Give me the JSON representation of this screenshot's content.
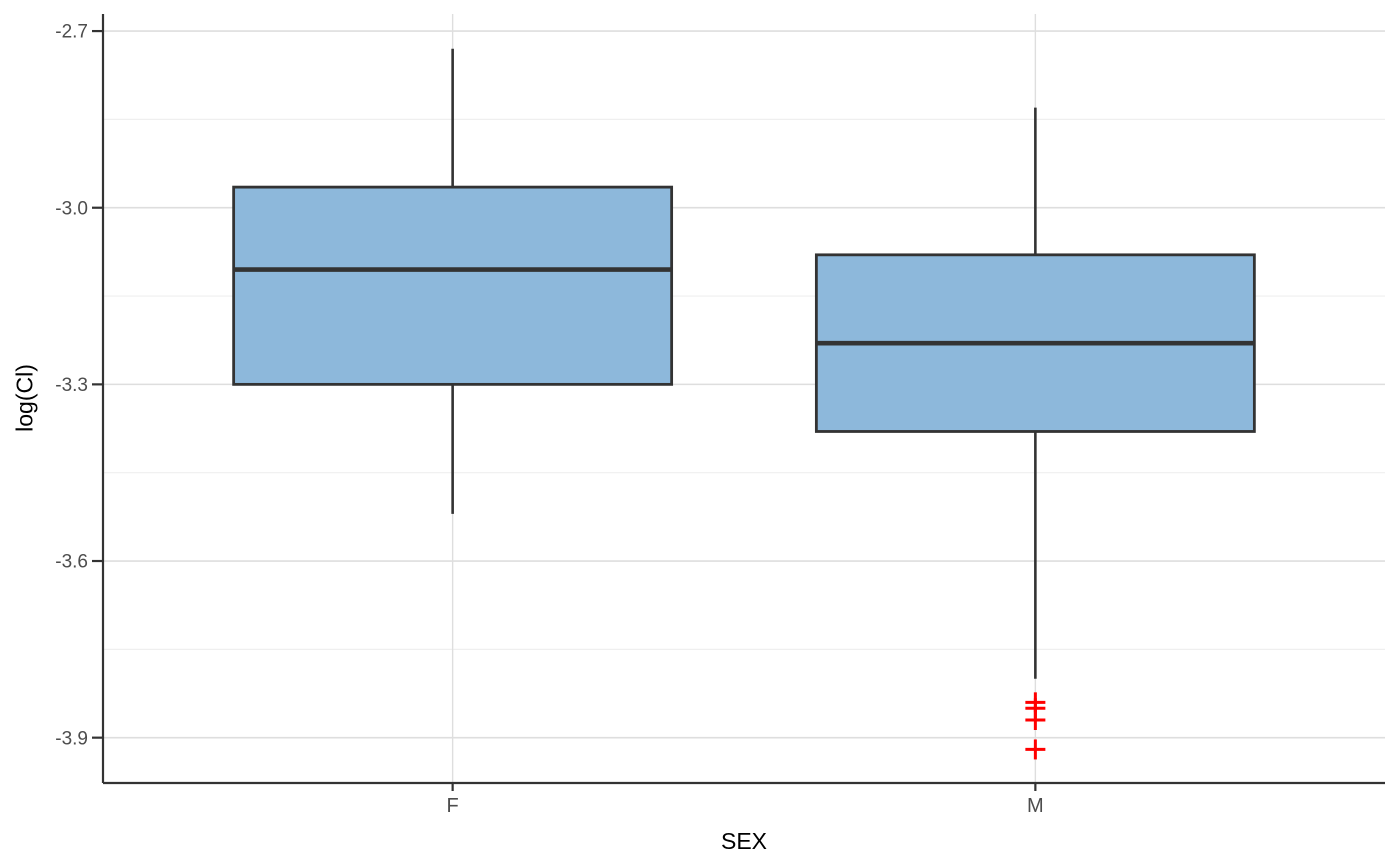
{
  "chart_data": {
    "type": "boxplot",
    "title": "",
    "xlabel": "SEX",
    "ylabel": "log(Cl)",
    "categories": [
      "F",
      "M"
    ],
    "y_tick_labels": [
      "-2.7",
      "-3.0",
      "-3.3",
      "-3.6",
      "-3.9"
    ],
    "y_ticks": [
      -2.7,
      -3.0,
      -3.3,
      -3.6,
      -3.9
    ],
    "y_minor_gridlines": [
      -2.85,
      -3.15,
      -3.45,
      -3.75
    ],
    "ylim": [
      -3.977,
      -2.671
    ],
    "grid": true,
    "legend": false,
    "outlier_shape": "plus",
    "series": [
      {
        "category": "F",
        "whisker_low": -3.52,
        "q1": -3.3,
        "median": -3.105,
        "q3": -2.965,
        "whisker_high": -2.73,
        "outliers": []
      },
      {
        "category": "M",
        "whisker_low": -3.8,
        "q1": -3.38,
        "median": -3.23,
        "q3": -3.08,
        "whisker_high": -2.83,
        "outliers": [
          -3.84,
          -3.85,
          -3.87,
          -3.92
        ]
      }
    ],
    "colors": {
      "box_fill": "#8DB8DB",
      "box_stroke": "#333333",
      "median_stroke": "#333333",
      "whisker_stroke": "#333333",
      "outlier": "#FF0000",
      "grid_major": "#DEDEDE",
      "grid_minor": "#EFEFEF",
      "axis_line": "#333333",
      "tick_mark": "#333333",
      "tick_label": "#4D4D4D",
      "axis_title": "#000000",
      "background": "#FFFFFF"
    }
  }
}
